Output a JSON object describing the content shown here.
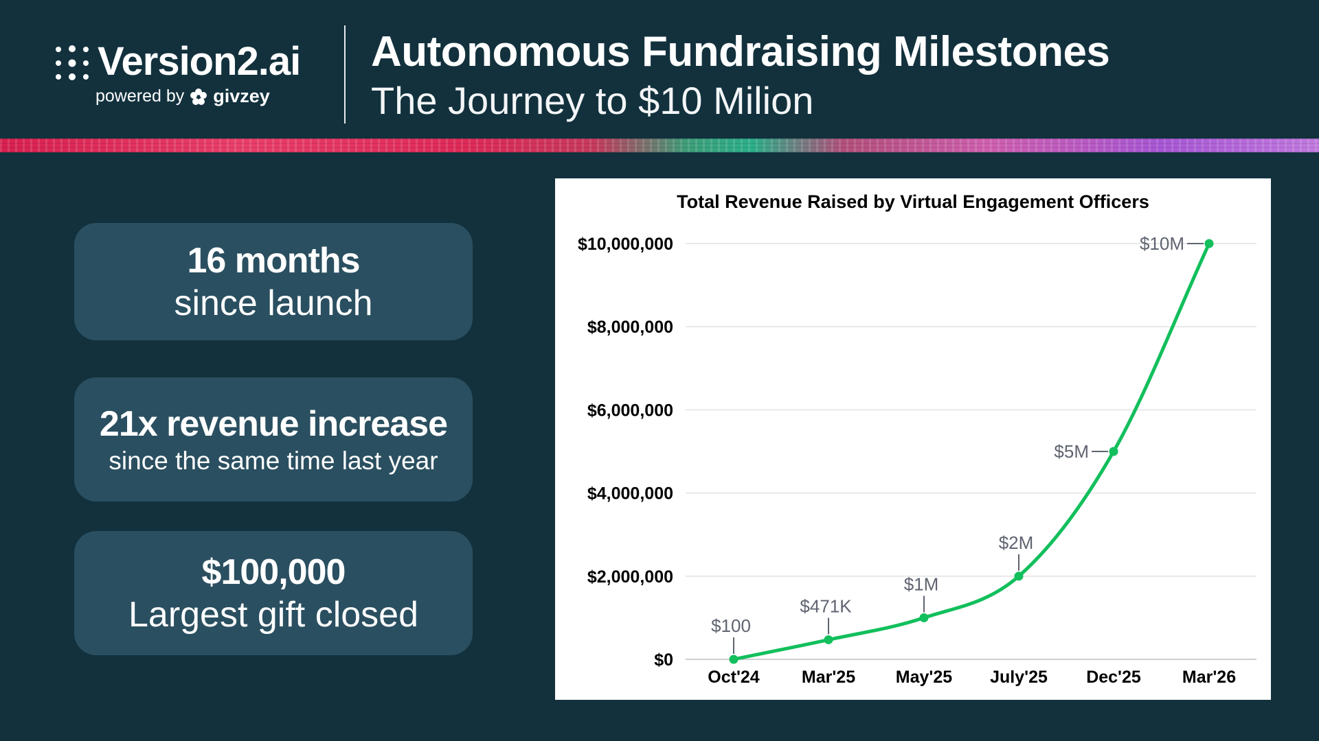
{
  "header": {
    "brand": "Version2.ai",
    "powered_by": "powered by",
    "partner": "givzey",
    "title": "Autonomous Fundraising Milestones",
    "subtitle": "The Journey to $10 Milion"
  },
  "stats": [
    {
      "headline": "16 months",
      "caption": "since launch"
    },
    {
      "headline": "21x revenue increase",
      "caption": "since the same time last year"
    },
    {
      "headline": "$100,000",
      "caption": "Largest gift closed"
    }
  ],
  "colors": {
    "background": "#12313d",
    "card": "#2a4f60",
    "line": "#12bf5c",
    "annotation": "#5f6470"
  },
  "chart_data": {
    "type": "line",
    "title": "Total Revenue Raised by Virtual Engagement Officers",
    "categories": [
      "Oct'24",
      "Mar'25",
      "May'25",
      "July'25",
      "Dec'25",
      "Mar'26"
    ],
    "values": [
      100,
      471000,
      1000000,
      2000000,
      5000000,
      10000000
    ],
    "data_labels": [
      "$100",
      "$471K",
      "$1M",
      "$2M",
      "$5M",
      "$10M"
    ],
    "yticks": [
      0,
      2000000,
      4000000,
      6000000,
      8000000,
      10000000
    ],
    "ytick_labels": [
      "$0",
      "$2,000,000",
      "$4,000,000",
      "$6,000,000",
      "$8,000,000",
      "$10,000,000"
    ],
    "ylim": [
      0,
      10000000
    ],
    "grid": true,
    "smooth": true
  }
}
